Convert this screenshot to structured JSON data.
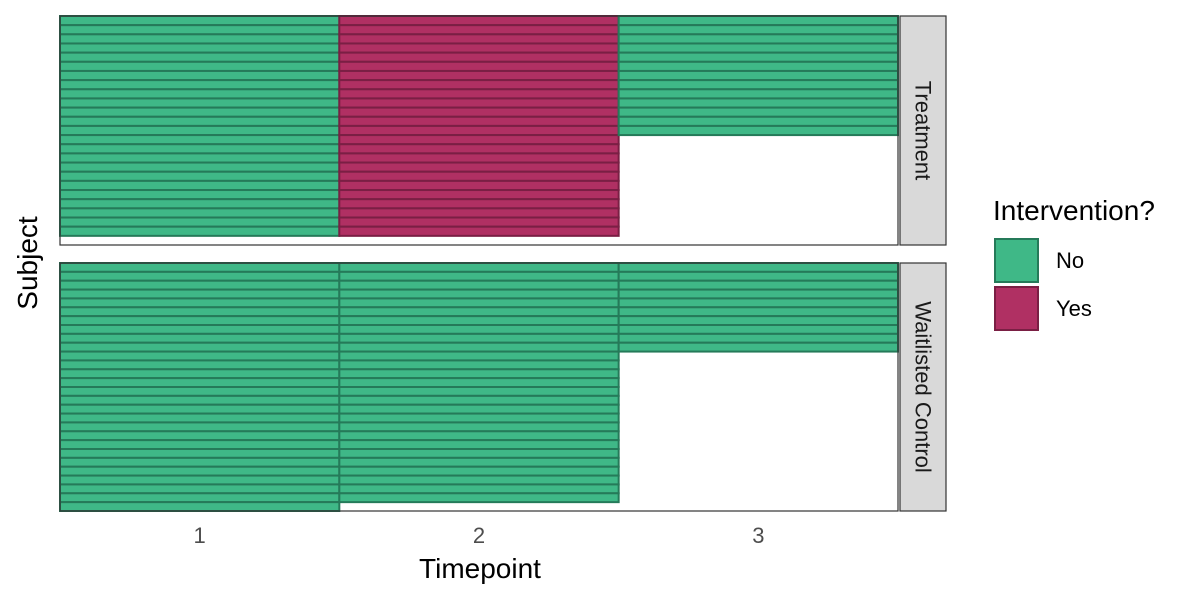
{
  "chart_data": {
    "type": "heatmap",
    "title": "",
    "xlabel": "Timepoint",
    "ylabel": "Subject",
    "x_ticks": [
      "1",
      "2",
      "3"
    ],
    "legend": {
      "title": "Intervention?",
      "placement": "right",
      "items": [
        {
          "label": "No",
          "fill": "#3fb887",
          "stroke": "#257a59"
        },
        {
          "label": "Yes",
          "fill": "#b03063",
          "stroke": "#7a1f44"
        }
      ]
    },
    "panels": [
      {
        "name": "Treatment",
        "n_rows": 25,
        "columns": [
          {
            "timepoint": "1",
            "value": "No",
            "subjects": 24
          },
          {
            "timepoint": "2",
            "value": "Yes",
            "subjects": 24
          },
          {
            "timepoint": "3",
            "value": "No",
            "subjects": 13
          }
        ]
      },
      {
        "name": "Waitlisted Control",
        "n_rows": 28,
        "columns": [
          {
            "timepoint": "1",
            "value": "No",
            "subjects": 28
          },
          {
            "timepoint": "2",
            "value": "No",
            "subjects": 27
          },
          {
            "timepoint": "3",
            "value": "No",
            "subjects": 10
          }
        ]
      }
    ]
  }
}
